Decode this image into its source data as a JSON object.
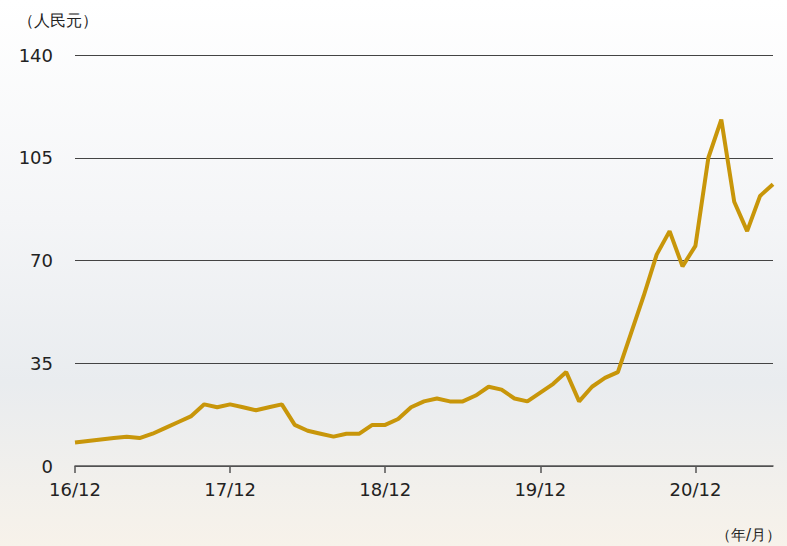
{
  "chart_data": {
    "type": "line",
    "y_label": "（人民元）",
    "x_label": "（年/月）",
    "categories": [
      "16/12",
      null,
      null,
      null,
      null,
      null,
      null,
      null,
      null,
      null,
      null,
      null,
      "17/12",
      null,
      null,
      null,
      null,
      null,
      null,
      null,
      null,
      null,
      null,
      null,
      "18/12",
      null,
      null,
      null,
      null,
      null,
      null,
      null,
      null,
      null,
      null,
      null,
      "19/12",
      null,
      null,
      null,
      null,
      null,
      null,
      null,
      null,
      null,
      null,
      null,
      "20/12",
      null,
      null,
      null,
      null,
      null,
      null
    ],
    "values": [
      8,
      8.5,
      9,
      9.5,
      10,
      9.5,
      11,
      13,
      15,
      17,
      21,
      20,
      21,
      20,
      19,
      20,
      21,
      14,
      12,
      11,
      10,
      11,
      11,
      14,
      14,
      16,
      20,
      22,
      23,
      22,
      22,
      24,
      27,
      26,
      23,
      22,
      25,
      28,
      32,
      22,
      27,
      30,
      32,
      45,
      58,
      72,
      80,
      68,
      75,
      105,
      118,
      90,
      80,
      92,
      96
    ],
    "color": "#c8960a",
    "ylim": [
      0,
      140
    ],
    "yticks": [
      0,
      35,
      70,
      105,
      140
    ],
    "grid": true
  }
}
